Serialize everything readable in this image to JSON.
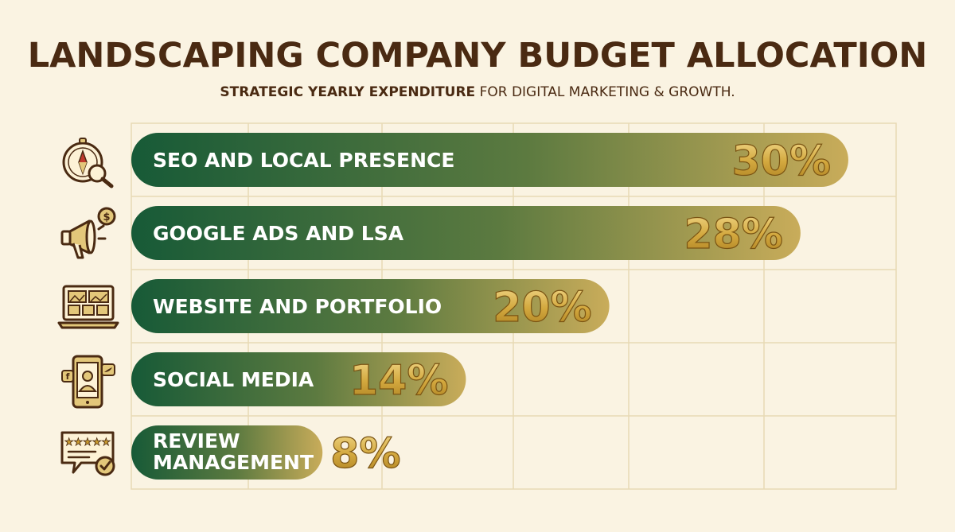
{
  "title": "LANDSCAPING COMPANY BUDGET ALLOCATION",
  "subtitle": {
    "strong": "STRATEGIC YEARLY EXPENDITURE",
    "rest": " FOR DIGITAL MARKETING & GROWTH."
  },
  "colors": {
    "bar_start": "#175a37",
    "bar_mid": "#5c7a40",
    "bar_end": "#c9ac5a",
    "value_gold": "#c99a2e",
    "value_gold_light": "#f2d98a",
    "icon_stroke": "#4a2a12",
    "icon_fill": "#e3c77a",
    "grid": "#e8d9b4"
  },
  "icons": [
    {
      "name": "compass-search-icon"
    },
    {
      "name": "megaphone-dollar-icon"
    },
    {
      "name": "laptop-portfolio-icon"
    },
    {
      "name": "social-phone-icon"
    },
    {
      "name": "review-stars-icon"
    }
  ],
  "chart_data": {
    "type": "bar",
    "orientation": "horizontal",
    "categories": [
      "SEO AND LOCAL PRESENCE",
      "GOOGLE ADS AND LSA",
      "WEBSITE AND PORTFOLIO",
      "SOCIAL MEDIA",
      "REVIEW MANAGEMENT"
    ],
    "values": [
      30,
      28,
      20,
      14,
      8
    ],
    "value_labels": [
      "30%",
      "28%",
      "20%",
      "14%",
      "8%"
    ],
    "label_lines": [
      [
        "SEO AND LOCAL PRESENCE"
      ],
      [
        "GOOGLE ADS AND LSA"
      ],
      [
        "WEBSITE AND PORTFOLIO"
      ],
      [
        "SOCIAL MEDIA"
      ],
      [
        "REVIEW",
        "MANAGEMENT"
      ]
    ],
    "xlim": [
      0,
      32
    ],
    "grid": true,
    "unit": "%"
  }
}
